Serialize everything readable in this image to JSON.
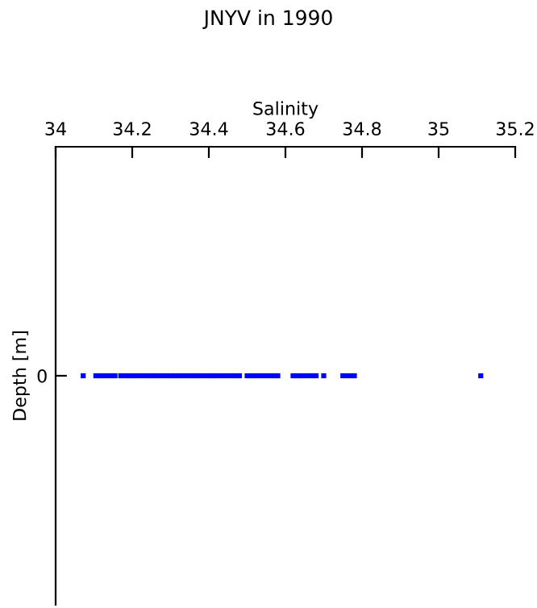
{
  "chart_data": {
    "type": "scatter",
    "title": "JNYV in 1990",
    "xlabel": "Salinity",
    "ylabel": "Depth [m]",
    "orientation": "horizontal",
    "categories": [
      "0"
    ],
    "series": [
      {
        "color": "#0000ff",
        "x": [
          "0",
          "0",
          "0",
          "0",
          "0",
          "0",
          "0",
          "0",
          "0",
          "0",
          "0",
          "0",
          "0",
          "0",
          "0",
          "0",
          "0",
          "0",
          "0",
          "0",
          "0",
          "0",
          "0",
          "0",
          "0",
          "0",
          "0",
          "0",
          "0",
          "0",
          "0",
          "0",
          "0",
          "0",
          "0",
          "0",
          "0",
          "0",
          "0",
          "0",
          "0",
          "0",
          "0",
          "0",
          "0",
          "0",
          "0",
          "0",
          "0",
          "0",
          "0",
          "0",
          "0",
          "0",
          "0",
          "0",
          "0",
          "0",
          "0",
          "0",
          "0"
        ],
        "values": [
          34.072,
          34.105,
          34.115,
          34.125,
          34.135,
          34.145,
          34.155,
          34.17,
          34.18,
          34.19,
          34.2,
          34.21,
          34.22,
          34.23,
          34.24,
          34.25,
          34.26,
          34.27,
          34.28,
          34.29,
          34.3,
          34.31,
          34.32,
          34.33,
          34.34,
          34.35,
          34.36,
          34.37,
          34.38,
          34.39,
          34.4,
          34.41,
          34.42,
          34.43,
          34.44,
          34.45,
          34.46,
          34.47,
          34.48,
          34.5,
          34.51,
          34.52,
          34.53,
          34.54,
          34.55,
          34.56,
          34.57,
          34.58,
          34.62,
          34.63,
          34.64,
          34.65,
          34.66,
          34.67,
          34.68,
          34.7,
          34.75,
          34.76,
          34.77,
          34.78,
          35.11
        ]
      }
    ],
    "marker": "square",
    "grid": false,
    "xlim": [
      34,
      35.2
    ],
    "xticks": [
      34,
      34.2,
      34.4,
      34.6,
      34.8,
      35,
      35.2
    ]
  }
}
